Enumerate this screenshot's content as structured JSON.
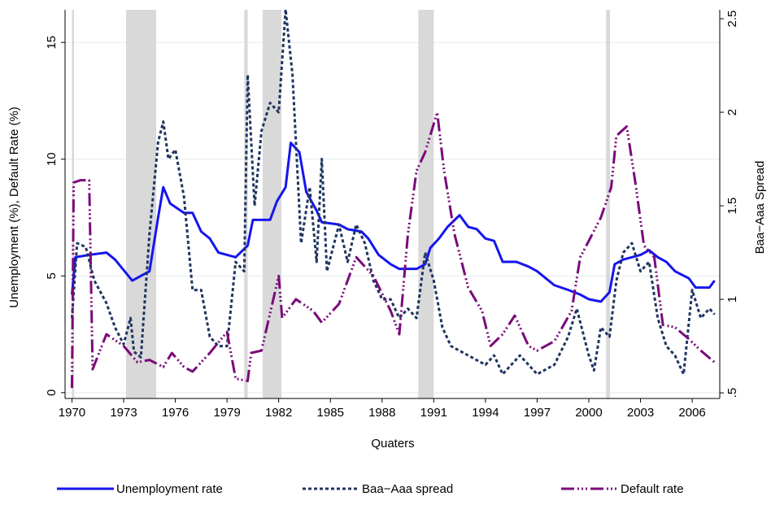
{
  "chart_data": {
    "type": "line",
    "y_label": "Unemployment (%), Default Rate (%)",
    "y2_label": "Baa−Aaa Spread",
    "x_label": "Quaters",
    "xlim": [
      1969.6,
      2007.6
    ],
    "xticks": [
      1970,
      1973,
      1976,
      1979,
      1982,
      1985,
      1988,
      1991,
      1994,
      1997,
      2000,
      2003,
      2006
    ],
    "ylim": [
      -0.25,
      16.4
    ],
    "yticks": [
      0,
      5,
      10,
      15
    ],
    "y2lim": [
      0.47,
      2.548
    ],
    "y2ticks": [
      {
        "value": 0.5,
        "label": ".5"
      },
      1,
      1.5,
      2,
      2.5
    ],
    "grid": true,
    "legend": "bottom",
    "shaded_periods": [
      [
        1970.0,
        1970.12
      ],
      [
        1973.14,
        1974.89
      ],
      [
        1980.0,
        1980.2
      ],
      [
        1981.07,
        1982.16
      ],
      [
        1990.1,
        1991.0
      ],
      [
        2001.0,
        2001.23
      ]
    ],
    "shade_color": "#d9d9d9",
    "series": [
      {
        "name": "Unemployment rate",
        "color": "#1515f0",
        "style": "solid",
        "x": [
          1970.0,
          1970.2,
          1971,
          1972,
          1972.5,
          1973.5,
          1974.5,
          1975.0,
          1975.3,
          1975.7,
          1976.5,
          1977,
          1977.5,
          1978,
          1978.5,
          1979,
          1979.5,
          1980.2,
          1980.5,
          1981,
          1981.5,
          1981.9,
          1982.4,
          1982.7,
          1983.2,
          1983.6,
          1984.2,
          1984.5,
          1985.5,
          1986,
          1986.8,
          1987.2,
          1987.8,
          1988.5,
          1989,
          1990,
          1990.5,
          1990.8,
          1991.3,
          1991.8,
          1992.5,
          1993,
          1993.5,
          1994,
          1994.5,
          1995,
          1995.8,
          1996.5,
          1997,
          1997.5,
          1998,
          1998.8,
          1999.5,
          2000,
          2000.7,
          2001.2,
          2001.5,
          2002,
          2002.5,
          2003,
          2003.5,
          2004,
          2004.5,
          2005,
          2005.8,
          2006.2,
          2007,
          2007.3
        ],
        "values": [
          4.2,
          5.8,
          5.9,
          6.0,
          5.7,
          4.8,
          5.2,
          7.5,
          8.8,
          8.1,
          7.7,
          7.7,
          6.9,
          6.6,
          6.0,
          5.9,
          5.8,
          6.3,
          7.4,
          7.4,
          7.4,
          8.2,
          8.8,
          10.7,
          10.3,
          8.6,
          7.8,
          7.3,
          7.2,
          7.0,
          6.9,
          6.6,
          5.9,
          5.5,
          5.3,
          5.3,
          5.5,
          6.2,
          6.6,
          7.1,
          7.6,
          7.1,
          7.0,
          6.6,
          6.5,
          5.6,
          5.6,
          5.4,
          5.2,
          4.9,
          4.6,
          4.4,
          4.2,
          4.0,
          3.9,
          4.3,
          5.5,
          5.7,
          5.8,
          5.9,
          6.1,
          5.8,
          5.6,
          5.2,
          4.9,
          4.5,
          4.5,
          4.8
        ]
      },
      {
        "name": "Baa−Aaa spread",
        "color": "#1f3560",
        "style": "dot",
        "axis": "y2",
        "x": [
          1970,
          1970.3,
          1970.8,
          1971.3,
          1972,
          1972.5,
          1973,
          1973.4,
          1973.6,
          1974,
          1974.5,
          1975,
          1975.3,
          1975.6,
          1976,
          1976.5,
          1977,
          1977.5,
          1978,
          1978.5,
          1979,
          1979.5,
          1980,
          1980.2,
          1980.6,
          1981,
          1981.5,
          1982,
          1982.4,
          1982.8,
          1983.3,
          1983.8,
          1984.2,
          1984.5,
          1984.8,
          1985.5,
          1986,
          1986.5,
          1987,
          1987.5,
          1988,
          1988.5,
          1989,
          1989.5,
          1990,
          1990.5,
          1991,
          1991.5,
          1992,
          1993,
          1994,
          1994.5,
          1995,
          1996,
          1997,
          1998,
          1998.8,
          1999.3,
          2000,
          2000.3,
          2000.7,
          2001.2,
          2001.6,
          2002,
          2002.5,
          2003,
          2003.5,
          2004,
          2004.5,
          2005,
          2005.5,
          2006,
          2006.5,
          2007,
          2007.3
        ],
        "values": [
          0.9,
          1.3,
          1.28,
          1.1,
          0.98,
          0.85,
          0.76,
          0.9,
          0.72,
          0.69,
          1.35,
          1.84,
          1.95,
          1.75,
          1.8,
          1.55,
          1.05,
          1.05,
          0.8,
          0.75,
          0.75,
          1.2,
          1.15,
          2.2,
          1.5,
          1.9,
          2.05,
          2.0,
          2.55,
          2.2,
          1.3,
          1.6,
          1.2,
          1.75,
          1.15,
          1.4,
          1.2,
          1.4,
          1.3,
          1.1,
          1.0,
          1.0,
          0.9,
          0.95,
          0.9,
          1.25,
          1.1,
          0.85,
          0.75,
          0.7,
          0.65,
          0.7,
          0.6,
          0.7,
          0.6,
          0.65,
          0.8,
          0.95,
          0.7,
          0.62,
          0.85,
          0.8,
          1.1,
          1.25,
          1.3,
          1.15,
          1.2,
          0.9,
          0.75,
          0.7,
          0.6,
          1.05,
          0.9,
          0.95,
          0.92
        ]
      },
      {
        "name": "Default rate",
        "color": "#7a0a7a",
        "style": "dashdot",
        "x": [
          1970,
          1970.1,
          1970.5,
          1971,
          1971.2,
          1972,
          1973,
          1973.8,
          1974.5,
          1975.3,
          1975.8,
          1976.5,
          1977,
          1978,
          1979,
          1979.5,
          1980.2,
          1980.4,
          1981,
          1982,
          1982.2,
          1983,
          1984,
          1984.5,
          1985.5,
          1986.5,
          1987.5,
          1988.5,
          1989,
          1989.5,
          1990,
          1990.5,
          1991.2,
          1991.6,
          1992.2,
          1993,
          1993.8,
          1994.3,
          1995,
          1995.7,
          1996.5,
          1997,
          1998,
          1999,
          1999.5,
          2000,
          2000.7,
          2001.3,
          2001.6,
          2002.2,
          2002.7,
          2003.2,
          2003.8,
          2004.3,
          2005,
          2005.8,
          2006.5,
          2007.3
        ],
        "values": [
          0.2,
          9.0,
          9.1,
          9.1,
          1.0,
          2.5,
          2.0,
          1.3,
          1.4,
          1.1,
          1.7,
          1.1,
          0.9,
          1.7,
          2.6,
          0.6,
          0.5,
          1.7,
          1.8,
          5.0,
          3.2,
          4.0,
          3.5,
          3.0,
          3.8,
          5.8,
          5.0,
          3.5,
          2.5,
          6.8,
          9.5,
          10.3,
          12.0,
          9.5,
          6.8,
          4.5,
          3.5,
          2.0,
          2.5,
          3.3,
          2.0,
          1.8,
          2.2,
          3.5,
          5.8,
          6.5,
          7.5,
          8.8,
          11.0,
          11.4,
          9.0,
          6.3,
          5.8,
          2.9,
          2.8,
          2.3,
          1.8,
          1.3
        ]
      }
    ]
  }
}
